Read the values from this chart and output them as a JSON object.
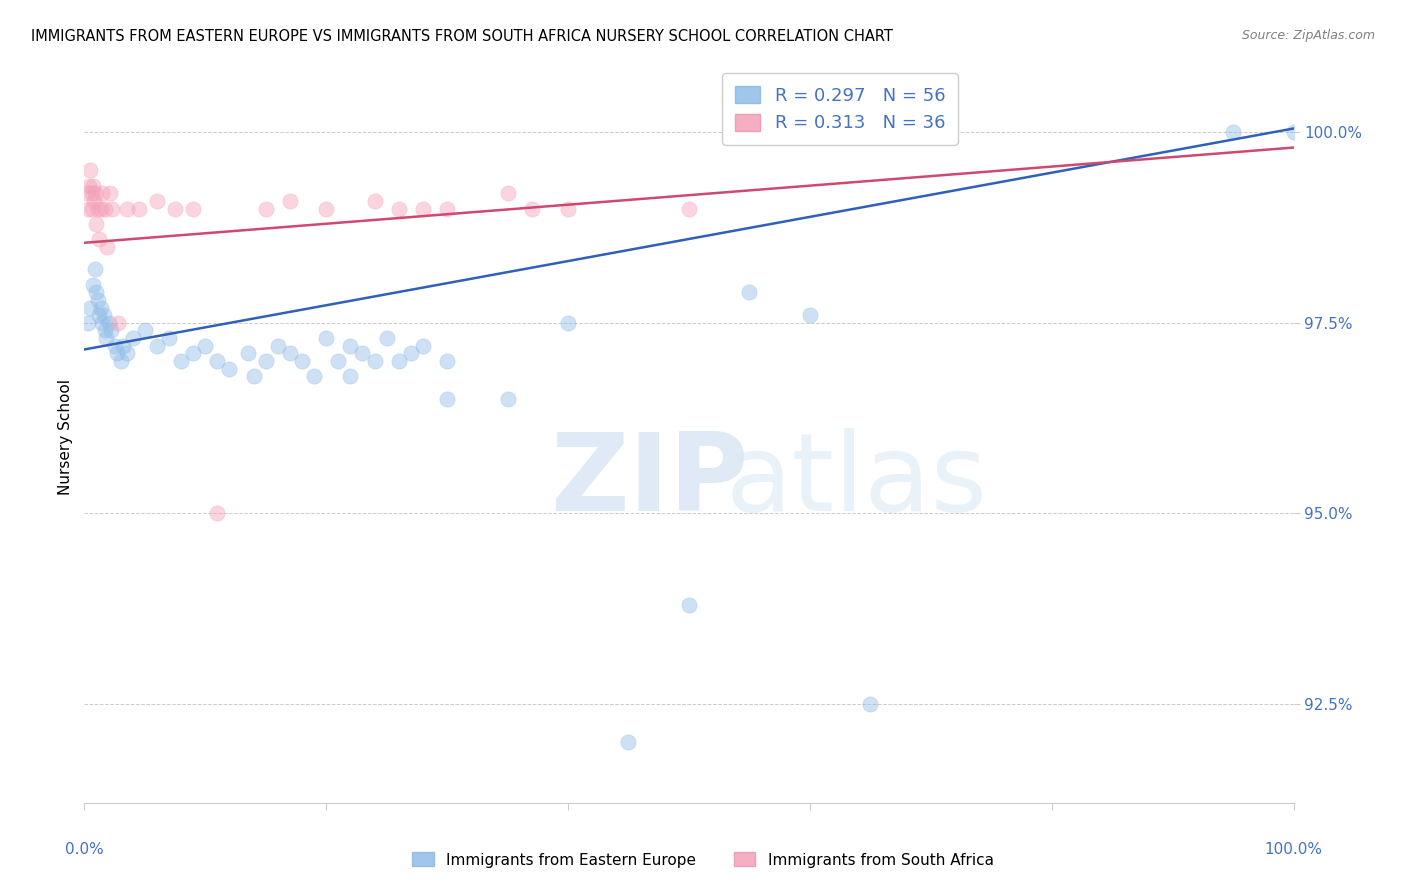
{
  "title": "IMMIGRANTS FROM EASTERN EUROPE VS IMMIGRANTS FROM SOUTH AFRICA NURSERY SCHOOL CORRELATION CHART",
  "source": "Source: ZipAtlas.com",
  "ylabel": "Nursery School",
  "xlim": [
    0.0,
    100.0
  ],
  "ylim": [
    91.2,
    100.8
  ],
  "ytick_values": [
    92.5,
    95.0,
    97.5,
    100.0
  ],
  "ytick_labels": [
    "92.5%",
    "95.0%",
    "97.5%",
    "100.0%"
  ],
  "blue_x": [
    0.3,
    0.5,
    0.7,
    0.9,
    1.0,
    1.1,
    1.2,
    1.4,
    1.5,
    1.6,
    1.7,
    1.8,
    2.0,
    2.2,
    2.5,
    2.7,
    3.0,
    3.2,
    3.5,
    4.0,
    5.0,
    6.0,
    7.0,
    8.0,
    9.0,
    10.0,
    11.0,
    12.0,
    13.5,
    14.0,
    15.0,
    16.0,
    17.0,
    18.0,
    19.0,
    20.0,
    21.0,
    22.0,
    23.0,
    24.0,
    25.0,
    26.0,
    27.0,
    28.0,
    30.0,
    35.0,
    40.0,
    45.0,
    50.0,
    55.0,
    60.0,
    65.0,
    95.0,
    100.0,
    22.0,
    30.0
  ],
  "blue_y": [
    97.5,
    97.7,
    98.0,
    98.2,
    97.9,
    97.8,
    97.6,
    97.7,
    97.5,
    97.6,
    97.4,
    97.3,
    97.5,
    97.4,
    97.2,
    97.1,
    97.0,
    97.2,
    97.1,
    97.3,
    97.4,
    97.2,
    97.3,
    97.0,
    97.1,
    97.2,
    97.0,
    96.9,
    97.1,
    96.8,
    97.0,
    97.2,
    97.1,
    97.0,
    96.8,
    97.3,
    97.0,
    97.2,
    97.1,
    97.0,
    97.3,
    97.0,
    97.1,
    97.2,
    97.0,
    96.5,
    97.5,
    92.0,
    93.8,
    97.9,
    97.6,
    92.5,
    100.0,
    100.0,
    96.8,
    96.5
  ],
  "pink_x": [
    0.2,
    0.3,
    0.4,
    0.5,
    0.6,
    0.6,
    0.7,
    0.8,
    0.9,
    1.0,
    1.1,
    1.2,
    1.4,
    1.5,
    1.7,
    1.9,
    2.1,
    2.3,
    2.8,
    3.5,
    4.5,
    6.0,
    7.5,
    9.0,
    11.0,
    15.0,
    17.0,
    20.0,
    24.0,
    26.0,
    28.0,
    30.0,
    35.0,
    37.0,
    40.0,
    50.0
  ],
  "pink_y": [
    99.2,
    99.0,
    99.3,
    99.5,
    99.2,
    99.0,
    99.3,
    99.1,
    99.2,
    98.8,
    99.0,
    98.6,
    99.0,
    99.2,
    99.0,
    98.5,
    99.2,
    99.0,
    97.5,
    99.0,
    99.0,
    99.1,
    99.0,
    99.0,
    95.0,
    99.0,
    99.1,
    99.0,
    99.1,
    99.0,
    99.0,
    99.0,
    99.2,
    99.0,
    99.0,
    99.0
  ],
  "blue_reg_x0": 0.0,
  "blue_reg_y0": 97.15,
  "blue_reg_x1": 100.0,
  "blue_reg_y1": 100.05,
  "pink_reg_x0": 0.0,
  "pink_reg_y0": 98.55,
  "pink_reg_x1": 100.0,
  "pink_reg_y1": 99.8,
  "blue_dot_color": "#90bce8",
  "pink_dot_color": "#f4a0b8",
  "blue_line_color": "#3060b8",
  "pink_line_color": "#d04870",
  "legend_label_blue": "R = 0.297   N = 56",
  "legend_label_pink": "R = 0.313   N = 36",
  "watermark_line1": "ZIP",
  "watermark_line2": "atlas",
  "scatter_size": 120,
  "scatter_alpha": 0.45,
  "background_color": "#ffffff",
  "grid_color": "#cccccc",
  "axis_tick_color": "#4472c4",
  "title_fontsize": 10.5,
  "source_fontsize": 9
}
